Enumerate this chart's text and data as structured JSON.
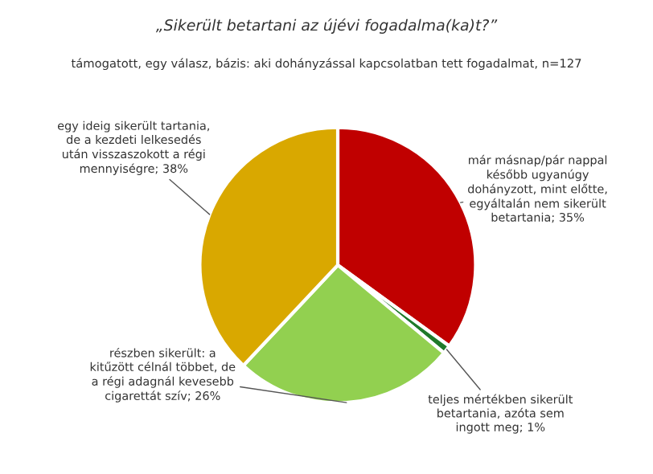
{
  "chart_data": {
    "type": "pie",
    "title": "„Sikerült betartani az újévi fogadalma(ka)t?”",
    "subtitle": "támogatott, egy válasz, bázis: aki dohányzással kapcsolatban tett fogadalmat, n=127",
    "categories": [
      "már másnap/pár nappal\nkésőbb ugyanúgy\ndohányzott, mint előtte,\negyáltalán nem sikerült\nbetartania; 35%",
      "teljes mértékben sikerült\nbetartania, azóta sem\ningott meg; 1%",
      "részben sikerült: a\nkitűzött célnál többet, de\na régi adagnál kevesebb\ncigarettát szív; 26%",
      "egy ideig sikerült tartania,\nde a kezdeti lelkesedés\nután visszaszokott a régi\nmennyiségre; 38%"
    ],
    "values": [
      35,
      1,
      26,
      38
    ],
    "colors": [
      "#c00000",
      "#1f7a2a",
      "#92d050",
      "#d9a800"
    ],
    "legend": false
  }
}
